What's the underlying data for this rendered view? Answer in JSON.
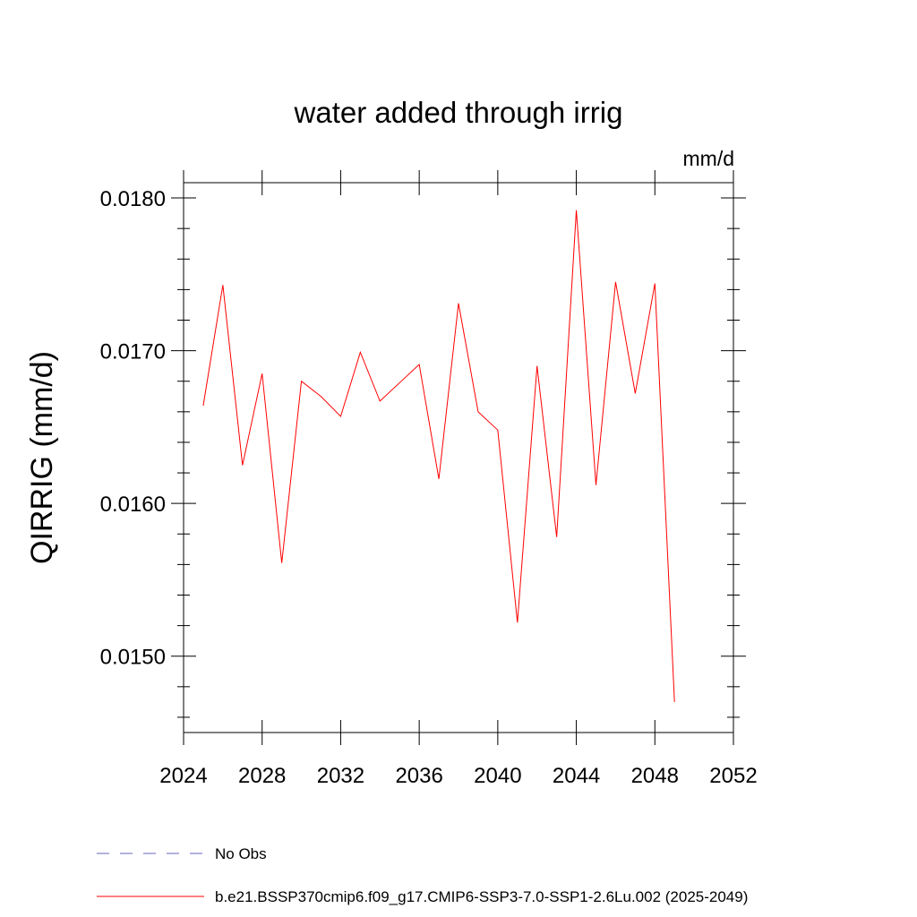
{
  "chart_data": {
    "type": "line",
    "title": "water added through irrig",
    "units": "mm/d",
    "ylabel": "QIRRIG  (mm/d)",
    "xlabel": "",
    "xlim": [
      2024,
      2052
    ],
    "ylim": [
      0.0145,
      0.0181
    ],
    "x_ticks": [
      2024,
      2028,
      2032,
      2036,
      2040,
      2044,
      2048,
      2052
    ],
    "x_tick_labels": [
      "2024",
      "2028",
      "2032",
      "2036",
      "2040",
      "2044",
      "2048",
      "2052"
    ],
    "y_ticks": [
      0.015,
      0.016,
      0.017,
      0.018
    ],
    "y_tick_labels": [
      "0.0150",
      "0.0160",
      "0.0170",
      "0.0180"
    ],
    "y_minor_step": 0.0002,
    "x_minor_step": 1,
    "grid": false,
    "series": [
      {
        "name": "b.e21.BSSP370cmip6.f09_g17.CMIP6-SSP3-7.0-SSP1-2.6Lu.002 (2025-2049)",
        "color": "#ff0000",
        "x": [
          2025,
          2026,
          2027,
          2028,
          2029,
          2030,
          2031,
          2032,
          2033,
          2034,
          2035,
          2036,
          2037,
          2038,
          2039,
          2040,
          2041,
          2042,
          2043,
          2044,
          2045,
          2046,
          2047,
          2048,
          2049
        ],
        "values": [
          0.01664,
          0.01743,
          0.01625,
          0.01685,
          0.01561,
          0.0168,
          0.0167,
          0.01657,
          0.01699,
          0.01667,
          0.01679,
          0.01691,
          0.01616,
          0.01731,
          0.0166,
          0.01648,
          0.01522,
          0.0169,
          0.01578,
          0.01792,
          0.01612,
          0.01745,
          0.01672,
          0.01744,
          0.0147
        ]
      }
    ],
    "legend": {
      "placement": "bottom",
      "entries": [
        {
          "label": "No Obs",
          "style": "dashed",
          "color": "#6666bb"
        },
        {
          "label": "b.e21.BSSP370cmip6.f09_g17.CMIP6-SSP3-7.0-SSP1-2.6Lu.002 (2025-2049)",
          "style": "solid",
          "color": "#ff0000"
        }
      ]
    }
  }
}
